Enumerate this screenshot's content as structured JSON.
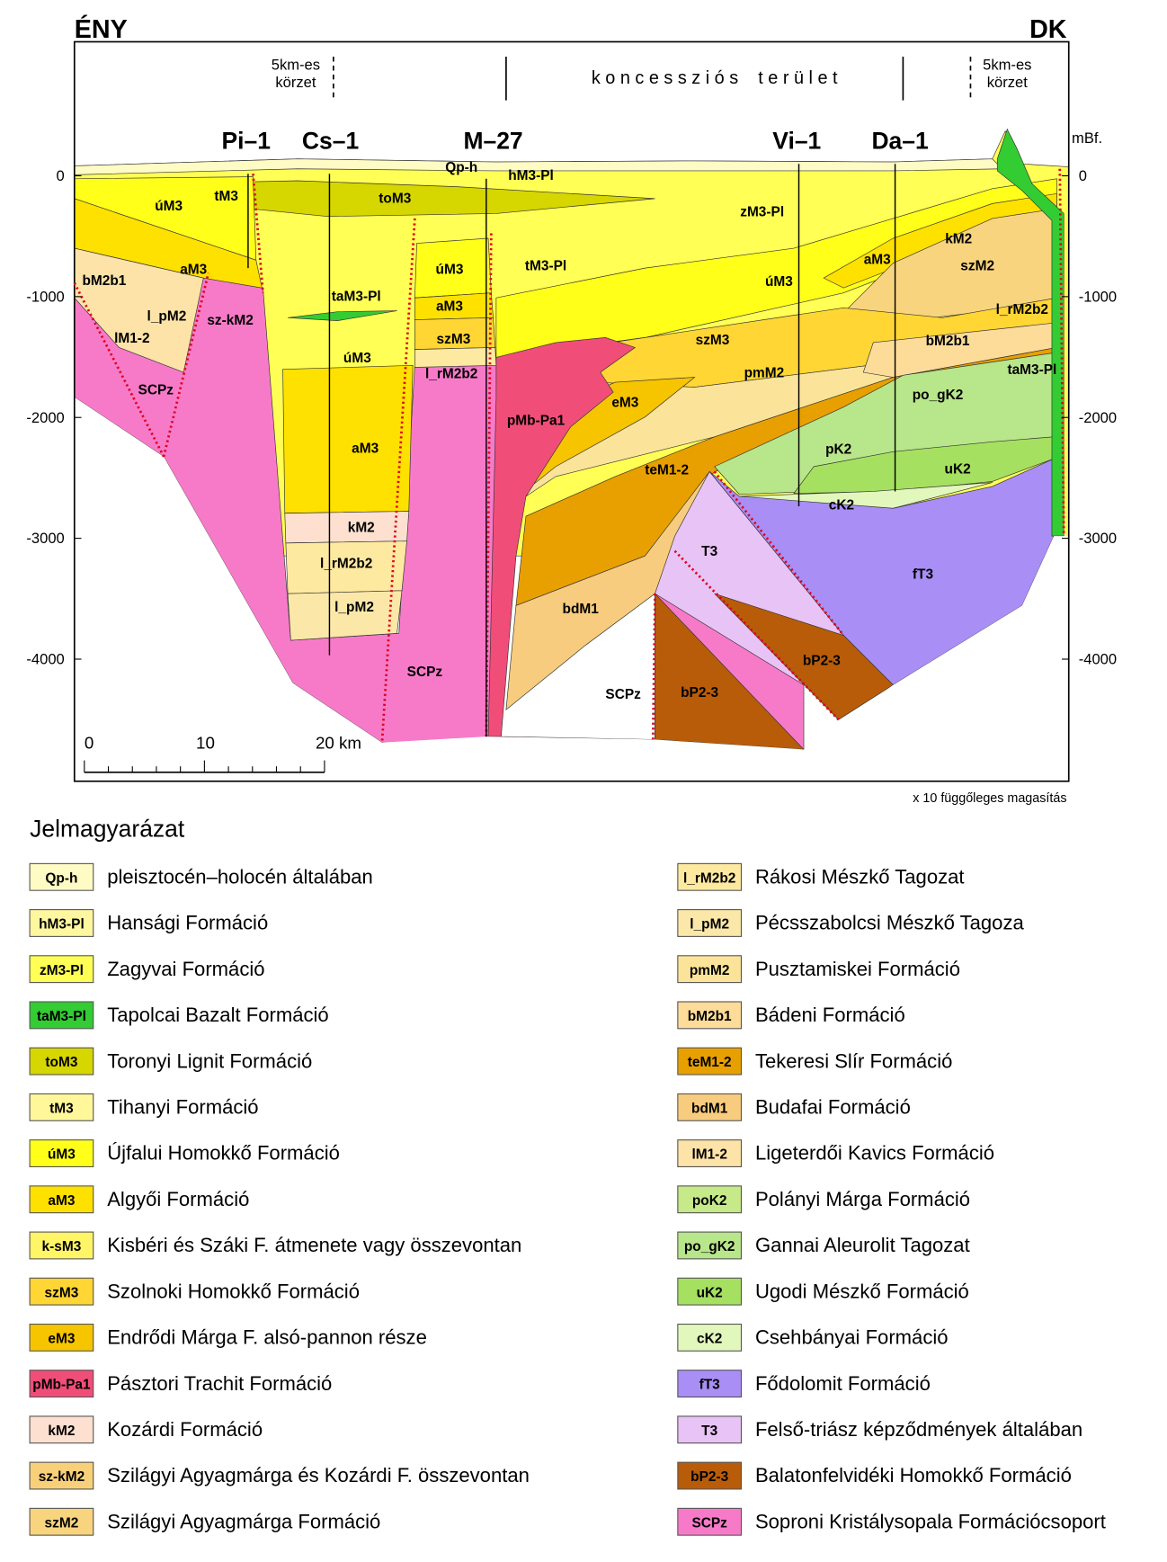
{
  "header": {
    "left": "ÉNY",
    "right": "DK"
  },
  "section": {
    "zone_left": [
      "5km-es",
      "körzet"
    ],
    "zone_right": [
      "5km-es",
      "körzet"
    ],
    "concession": "k o n c e s s z i ó s    t e r ü l e t",
    "unit": "mBf.",
    "wells": [
      "Pi–1",
      "Cs–1",
      "M–27",
      "Vi–1",
      "Da–1"
    ],
    "depth_labels": [
      "0",
      "-1000",
      "-2000",
      "-3000",
      "-4000"
    ],
    "scale_labels": [
      "0",
      "10",
      "20 km"
    ],
    "note": "x 10 függőleges magasítás",
    "layer_labels": [
      "Qp-h",
      "hM3-Pl",
      "úM3",
      "tM3",
      "toM3",
      "zM3-Pl",
      "tM3-Pl",
      "úM3",
      "aM3",
      "bM2b1",
      "l_pM2",
      "lM1-2",
      "sz-kM2",
      "taM3-Pl",
      "aM3",
      "szM3",
      "l_rM2b2",
      "úM3",
      "aM3",
      "SCPz",
      "kM2",
      "l_rM2b2",
      "l_pM2",
      "SCPz",
      "úM3",
      "aM3",
      "kM2",
      "szM2",
      "l_rM2b2",
      "bM2b1",
      "taM3-Pl",
      "szM3",
      "pmM2",
      "po_gK2",
      "eM3",
      "pMb-Pa1",
      "pK2",
      "uK2",
      "teM1-2",
      "cK2",
      "T3",
      "fT3",
      "bdM1",
      "bP2-3",
      "SCPz",
      "bP2-3"
    ]
  },
  "legend": {
    "title": "Jelmagyarázat",
    "items": [
      {
        "code": "Qp-h",
        "text": "pleisztocén–holocén általában",
        "color": "#fffbc4"
      },
      {
        "code": "hM3-Pl",
        "text": "Hansági Formáció",
        "color": "#fff7a0"
      },
      {
        "code": "zM3-Pl",
        "text": "Zagyvai Formáció",
        "color": "#ffff55"
      },
      {
        "code": "taM3-Pl",
        "text": "Tapolcai Bazalt Formáció",
        "color": "#33cc33"
      },
      {
        "code": "toM3",
        "text": "Toronyi Lignit Formáció",
        "color": "#d6d600"
      },
      {
        "code": "tM3",
        "text": "Tihanyi Formáció",
        "color": "#fff799"
      },
      {
        "code": "úM3",
        "text": "Újfalui Homokkő Formáció",
        "color": "#ffff1a"
      },
      {
        "code": "aM3",
        "text": "Algyői Formáció",
        "color": "#ffe100"
      },
      {
        "code": "k-sM3",
        "text": "Kisbéri és Száki F. átmenete vagy összevontan",
        "color": "#fff566"
      },
      {
        "code": "szM3",
        "text": "Szolnoki Homokkő Formáció",
        "color": "#ffd633"
      },
      {
        "code": "eM3",
        "text": "Endrődi Márga F. alsó-pannon része",
        "color": "#f7c400"
      },
      {
        "code": "pMb-Pa1",
        "text": "Pásztori Trachit Formáció",
        "color": "#f04e78"
      },
      {
        "code": "kM2",
        "text": "Kozárdi Formáció",
        "color": "#fde0cf"
      },
      {
        "code": "sz-kM2",
        "text": "Szilágyi Agyagmárga és Kozárdi F. összevontan",
        "color": "#f9d07a"
      },
      {
        "code": "szM2",
        "text": "Szilágyi Agyagmárga Formáció",
        "color": "#f8d47e"
      },
      {
        "code": "l_rM2b2",
        "text": "Rákosi Mészkő Tagozat",
        "color": "#fde9a0"
      },
      {
        "code": "l_pM2",
        "text": "Pécsszabolcsi Mészkő Tagoza",
        "color": "#fbe8a8"
      },
      {
        "code": "pmM2",
        "text": "Pusztamiskei Formáció",
        "color": "#fbe49a"
      },
      {
        "code": "bM2b1",
        "text": "Bádeni Formáció",
        "color": "#fddc9a"
      },
      {
        "code": "teM1-2",
        "text": "Tekeresi Slír Formáció",
        "color": "#e8a000"
      },
      {
        "code": "bdM1",
        "text": "Budafai Formáció",
        "color": "#f8cc7e"
      },
      {
        "code": "lM1-2",
        "text": "Ligeterdői Kavics Formáció",
        "color": "#fde3a8"
      },
      {
        "code": "poK2",
        "text": "Polányi Márga Formáció",
        "color": "#c6e98a"
      },
      {
        "code": "po_gK2",
        "text": "Gannai Aleurolit Tagozat",
        "color": "#b8e68a"
      },
      {
        "code": "uK2",
        "text": "Ugodi Mészkő Formáció",
        "color": "#a6e060"
      },
      {
        "code": "cK2",
        "text": "Csehbányai Formáció",
        "color": "#e2f7bc"
      },
      {
        "code": "fT3",
        "text": "Fődolomit Formáció",
        "color": "#a98ef5"
      },
      {
        "code": "T3",
        "text": "Felső-triász képződmények általában",
        "color": "#e8c3f5"
      },
      {
        "code": "bP2-3",
        "text": "Balatonfelvidéki Homokkő Formáció",
        "color": "#b85c0a"
      },
      {
        "code": "SCPz",
        "text": "Soproni Kristálysopala Formációcsoport",
        "color": "#f77ac9"
      }
    ]
  }
}
